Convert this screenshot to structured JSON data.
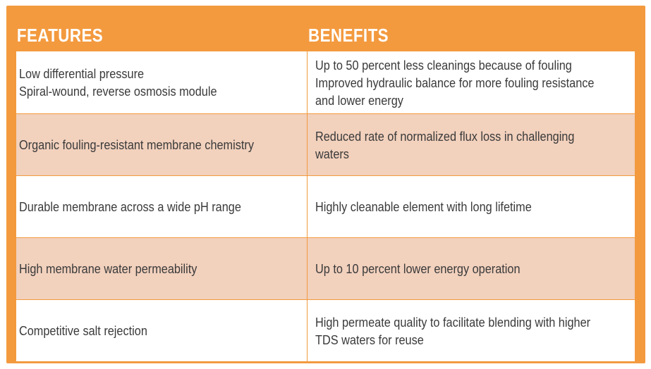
{
  "table": {
    "headers": {
      "features": "FEATURES",
      "benefits": "BENEFITS"
    },
    "rows": [
      {
        "feature": "Low differential pressure\nSpiral-wound, reverse osmosis module",
        "benefit": "Up to 50 percent less cleanings because of fouling\nImproved hydraulic balance for more fouling resistance\nand lower energy"
      },
      {
        "feature": "Organic fouling-resistant membrane chemistry",
        "benefit": "Reduced rate of normalized flux loss in challenging\nwaters"
      },
      {
        "feature": "Durable membrane across a wide pH range",
        "benefit": "Highly cleanable element with long lifetime"
      },
      {
        "feature": "High membrane water permeability",
        "benefit": "Up to 10 percent lower energy operation"
      },
      {
        "feature": "Competitive salt rejection",
        "benefit": "High permeate quality to facilitate blending with higher\nTDS waters for reuse"
      }
    ]
  },
  "colors": {
    "frame": "#f39a3f",
    "shaded_row": "#f2d1bd",
    "white_row": "#ffffff",
    "text": "#3a3a3a",
    "header_text": "#ffffff"
  }
}
